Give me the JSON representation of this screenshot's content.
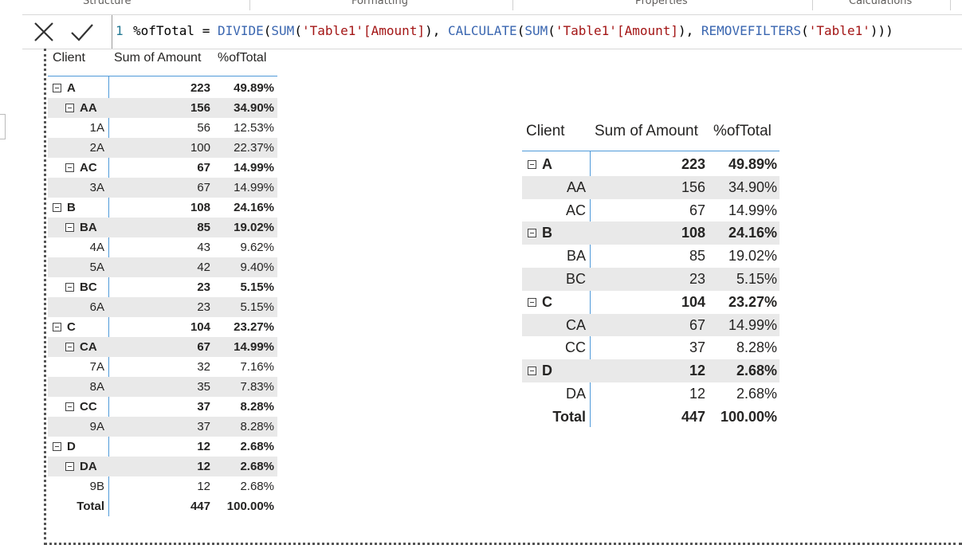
{
  "ribbon": {
    "tabs": [
      "Structure",
      "Formatting",
      "Properties",
      "Calculations"
    ]
  },
  "formula": {
    "line_number": "1",
    "parts": [
      {
        "t": "%ofTotal = ",
        "c": "cb"
      },
      {
        "t": "DIVIDE",
        "c": "cf"
      },
      {
        "t": "(",
        "c": "cb"
      },
      {
        "t": "SUM",
        "c": "cf"
      },
      {
        "t": "(",
        "c": "cb"
      },
      {
        "t": "'Table1'[Amount]",
        "c": "cs"
      },
      {
        "t": "), ",
        "c": "cb"
      },
      {
        "t": "CALCULATE",
        "c": "cf"
      },
      {
        "t": "(",
        "c": "cb"
      },
      {
        "t": "SUM",
        "c": "cf"
      },
      {
        "t": "(",
        "c": "cb"
      },
      {
        "t": "'Table1'[Amount]",
        "c": "cs"
      },
      {
        "t": "), ",
        "c": "cb"
      },
      {
        "t": "REMOVEFILTERS",
        "c": "cf"
      },
      {
        "t": "(",
        "c": "cb"
      },
      {
        "t": "'Table1'",
        "c": "cs"
      },
      {
        "t": ")))",
        "c": "cb"
      }
    ]
  },
  "matrix_left": {
    "headers": [
      "Client",
      "Sum of Amount",
      "%ofTotal"
    ],
    "rows": [
      {
        "label": "A",
        "amount": "223",
        "pct": "49.89%",
        "level": 0,
        "bold": true,
        "toggle": true
      },
      {
        "label": "AA",
        "amount": "156",
        "pct": "34.90%",
        "level": 1,
        "bold": true,
        "toggle": true
      },
      {
        "label": "1A",
        "amount": "56",
        "pct": "12.53%",
        "level": 2,
        "bold": false,
        "toggle": false
      },
      {
        "label": "2A",
        "amount": "100",
        "pct": "22.37%",
        "level": 2,
        "bold": false,
        "toggle": false
      },
      {
        "label": "AC",
        "amount": "67",
        "pct": "14.99%",
        "level": 1,
        "bold": true,
        "toggle": true
      },
      {
        "label": "3A",
        "amount": "67",
        "pct": "14.99%",
        "level": 2,
        "bold": false,
        "toggle": false
      },
      {
        "label": "B",
        "amount": "108",
        "pct": "24.16%",
        "level": 0,
        "bold": true,
        "toggle": true
      },
      {
        "label": "BA",
        "amount": "85",
        "pct": "19.02%",
        "level": 1,
        "bold": true,
        "toggle": true
      },
      {
        "label": "4A",
        "amount": "43",
        "pct": "9.62%",
        "level": 2,
        "bold": false,
        "toggle": false
      },
      {
        "label": "5A",
        "amount": "42",
        "pct": "9.40%",
        "level": 2,
        "bold": false,
        "toggle": false
      },
      {
        "label": "BC",
        "amount": "23",
        "pct": "5.15%",
        "level": 1,
        "bold": true,
        "toggle": true
      },
      {
        "label": "6A",
        "amount": "23",
        "pct": "5.15%",
        "level": 2,
        "bold": false,
        "toggle": false
      },
      {
        "label": "C",
        "amount": "104",
        "pct": "23.27%",
        "level": 0,
        "bold": true,
        "toggle": true
      },
      {
        "label": "CA",
        "amount": "67",
        "pct": "14.99%",
        "level": 1,
        "bold": true,
        "toggle": true
      },
      {
        "label": "7A",
        "amount": "32",
        "pct": "7.16%",
        "level": 2,
        "bold": false,
        "toggle": false
      },
      {
        "label": "8A",
        "amount": "35",
        "pct": "7.83%",
        "level": 2,
        "bold": false,
        "toggle": false
      },
      {
        "label": "CC",
        "amount": "37",
        "pct": "8.28%",
        "level": 1,
        "bold": true,
        "toggle": true
      },
      {
        "label": "9A",
        "amount": "37",
        "pct": "8.28%",
        "level": 2,
        "bold": false,
        "toggle": false
      },
      {
        "label": "D",
        "amount": "12",
        "pct": "2.68%",
        "level": 0,
        "bold": true,
        "toggle": true
      },
      {
        "label": "DA",
        "amount": "12",
        "pct": "2.68%",
        "level": 1,
        "bold": true,
        "toggle": true
      },
      {
        "label": "9B",
        "amount": "12",
        "pct": "2.68%",
        "level": 2,
        "bold": false,
        "toggle": false
      },
      {
        "label": "Total",
        "amount": "447",
        "pct": "100.00%",
        "level": 3,
        "bold": true,
        "toggle": false
      }
    ]
  },
  "matrix_right": {
    "headers": [
      "Client",
      "Sum of Amount",
      "%ofTotal"
    ],
    "rows": [
      {
        "label": "A",
        "amount": "223",
        "pct": "49.89%",
        "level": 0,
        "bold": true,
        "toggle": true
      },
      {
        "label": "AA",
        "amount": "156",
        "pct": "34.90%",
        "level": 1,
        "bold": false,
        "toggle": false
      },
      {
        "label": "AC",
        "amount": "67",
        "pct": "14.99%",
        "level": 1,
        "bold": false,
        "toggle": false
      },
      {
        "label": "B",
        "amount": "108",
        "pct": "24.16%",
        "level": 0,
        "bold": true,
        "toggle": true
      },
      {
        "label": "BA",
        "amount": "85",
        "pct": "19.02%",
        "level": 1,
        "bold": false,
        "toggle": false
      },
      {
        "label": "BC",
        "amount": "23",
        "pct": "5.15%",
        "level": 1,
        "bold": false,
        "toggle": false
      },
      {
        "label": "C",
        "amount": "104",
        "pct": "23.27%",
        "level": 0,
        "bold": true,
        "toggle": true
      },
      {
        "label": "CA",
        "amount": "67",
        "pct": "14.99%",
        "level": 1,
        "bold": false,
        "toggle": false
      },
      {
        "label": "CC",
        "amount": "37",
        "pct": "8.28%",
        "level": 1,
        "bold": false,
        "toggle": false
      },
      {
        "label": "D",
        "amount": "12",
        "pct": "2.68%",
        "level": 0,
        "bold": true,
        "toggle": true
      },
      {
        "label": "DA",
        "amount": "12",
        "pct": "2.68%",
        "level": 1,
        "bold": false,
        "toggle": false
      },
      {
        "label": "Total",
        "amount": "447",
        "pct": "100.00%",
        "level": 3,
        "bold": true,
        "toggle": false
      }
    ]
  }
}
